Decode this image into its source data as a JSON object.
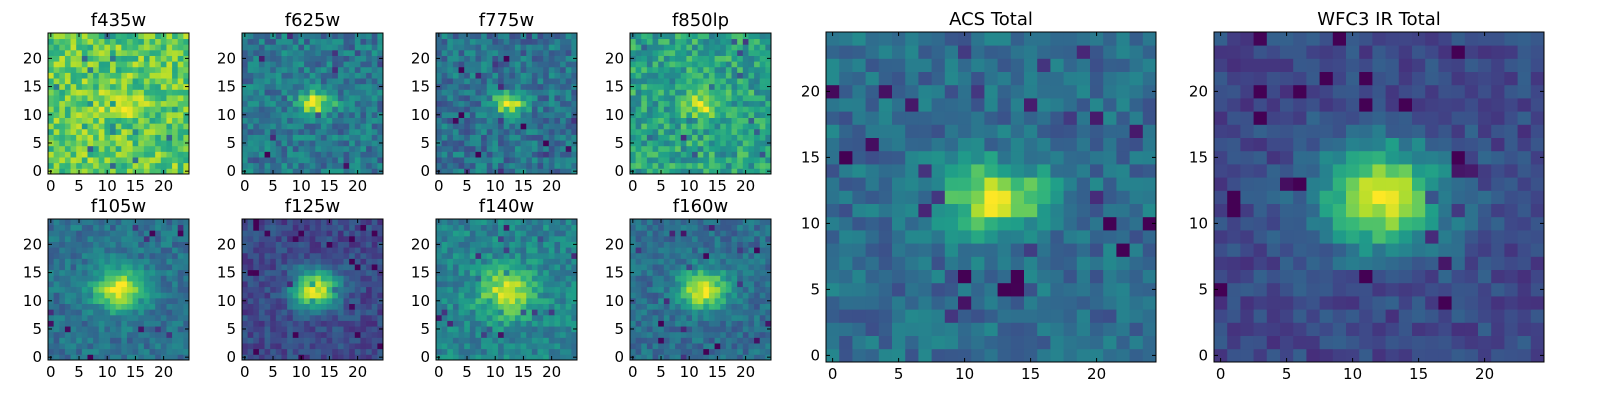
{
  "figure": {
    "colormap": "viridis",
    "colors": {
      "viridis_stops": [
        "#440154",
        "#482878",
        "#3e4989",
        "#31688e",
        "#26828e",
        "#1f9e89",
        "#35b779",
        "#6ece58",
        "#b5de2b",
        "#fde725"
      ],
      "axis": "#000000",
      "background": "#ffffff"
    }
  },
  "chart_data": [
    {
      "type": "heatmap",
      "title": "f435w",
      "grid_size": 25,
      "xlim": [
        -0.5,
        24.5
      ],
      "ylim": [
        -0.5,
        24.5
      ],
      "xticks": [
        0,
        5,
        10,
        15,
        20
      ],
      "yticks": [
        0,
        5,
        10,
        15,
        20
      ],
      "grid": false,
      "image": {
        "center": [
          12,
          12
        ],
        "sigma": [
          2.5,
          1.5
        ],
        "peak": 0.15,
        "background": 0.75,
        "noise": 0.35
      }
    },
    {
      "type": "heatmap",
      "title": "f625w",
      "grid_size": 25,
      "xlim": [
        -0.5,
        24.5
      ],
      "ylim": [
        -0.5,
        24.5
      ],
      "xticks": [
        0,
        5,
        10,
        15,
        20
      ],
      "yticks": [
        0,
        5,
        10,
        15,
        20
      ],
      "grid": false,
      "image": {
        "center": [
          12.5,
          12
        ],
        "sigma": [
          2.2,
          1.4
        ],
        "peak": 0.6,
        "background": 0.4,
        "noise": 0.3
      }
    },
    {
      "type": "heatmap",
      "title": "f775w",
      "grid_size": 25,
      "xlim": [
        -0.5,
        24.5
      ],
      "ylim": [
        -0.5,
        24.5
      ],
      "xticks": [
        0,
        5,
        10,
        15,
        20
      ],
      "yticks": [
        0,
        5,
        10,
        15,
        20
      ],
      "grid": false,
      "image": {
        "center": [
          12.5,
          12
        ],
        "sigma": [
          2.0,
          1.5
        ],
        "peak": 0.6,
        "background": 0.38,
        "noise": 0.3
      }
    },
    {
      "type": "heatmap",
      "title": "f850lp",
      "grid_size": 25,
      "xlim": [
        -0.5,
        24.5
      ],
      "ylim": [
        -0.5,
        24.5
      ],
      "xticks": [
        0,
        5,
        10,
        15,
        20
      ],
      "yticks": [
        0,
        5,
        10,
        15,
        20
      ],
      "grid": false,
      "image": {
        "center": [
          12,
          12
        ],
        "sigma": [
          2.2,
          1.5
        ],
        "peak": 0.35,
        "background": 0.58,
        "noise": 0.35
      }
    },
    {
      "type": "heatmap",
      "title": "f105w",
      "grid_size": 25,
      "xlim": [
        -0.5,
        24.5
      ],
      "ylim": [
        -0.5,
        24.5
      ],
      "xticks": [
        0,
        5,
        10,
        15,
        20
      ],
      "yticks": [
        0,
        5,
        10,
        15,
        20
      ],
      "grid": false,
      "image": {
        "center": [
          12,
          12
        ],
        "sigma": [
          3.0,
          2.5
        ],
        "peak": 0.6,
        "background": 0.38,
        "noise": 0.22
      }
    },
    {
      "type": "heatmap",
      "title": "f125w",
      "grid_size": 25,
      "xlim": [
        -0.5,
        24.5
      ],
      "ylim": [
        -0.5,
        24.5
      ],
      "xticks": [
        0,
        5,
        10,
        15,
        20
      ],
      "yticks": [
        0,
        5,
        10,
        15,
        20
      ],
      "grid": false,
      "image": {
        "center": [
          12.5,
          12
        ],
        "sigma": [
          3.0,
          2.5
        ],
        "peak": 0.72,
        "background": 0.22,
        "noise": 0.2
      }
    },
    {
      "type": "heatmap",
      "title": "f140w",
      "grid_size": 25,
      "xlim": [
        -0.5,
        24.5
      ],
      "ylim": [
        -0.5,
        24.5
      ],
      "xticks": [
        0,
        5,
        10,
        15,
        20
      ],
      "yticks": [
        0,
        5,
        10,
        15,
        20
      ],
      "grid": false,
      "image": {
        "center": [
          12,
          11.5
        ],
        "sigma": [
          3.5,
          3.0
        ],
        "peak": 0.48,
        "background": 0.45,
        "noise": 0.25
      }
    },
    {
      "type": "heatmap",
      "title": "f160w",
      "grid_size": 25,
      "xlim": [
        -0.5,
        24.5
      ],
      "ylim": [
        -0.5,
        24.5
      ],
      "xticks": [
        0,
        5,
        10,
        15,
        20
      ],
      "yticks": [
        0,
        5,
        10,
        15,
        20
      ],
      "grid": false,
      "image": {
        "center": [
          12.5,
          12
        ],
        "sigma": [
          3.0,
          2.5
        ],
        "peak": 0.6,
        "background": 0.36,
        "noise": 0.22
      }
    },
    {
      "type": "heatmap",
      "title": "ACS Total",
      "grid_size": 25,
      "xlim": [
        -0.5,
        24.5
      ],
      "ylim": [
        -0.5,
        24.5
      ],
      "xticks": [
        0,
        5,
        10,
        15,
        20
      ],
      "yticks": [
        0,
        5,
        10,
        15,
        20
      ],
      "grid": false,
      "image": {
        "center": [
          12.3,
          12
        ],
        "sigma": [
          2.6,
          1.7
        ],
        "peak": 0.62,
        "background": 0.36,
        "noise": 0.24
      }
    },
    {
      "type": "heatmap",
      "title": "WFC3 IR Total",
      "grid_size": 25,
      "xlim": [
        -0.5,
        24.5
      ],
      "ylim": [
        -0.5,
        24.5
      ],
      "xticks": [
        0,
        5,
        10,
        15,
        20
      ],
      "yticks": [
        0,
        5,
        10,
        15,
        20
      ],
      "grid": false,
      "image": {
        "center": [
          12.3,
          12
        ],
        "sigma": [
          3.4,
          2.8
        ],
        "peak": 0.72,
        "background": 0.22,
        "noise": 0.18
      }
    }
  ]
}
